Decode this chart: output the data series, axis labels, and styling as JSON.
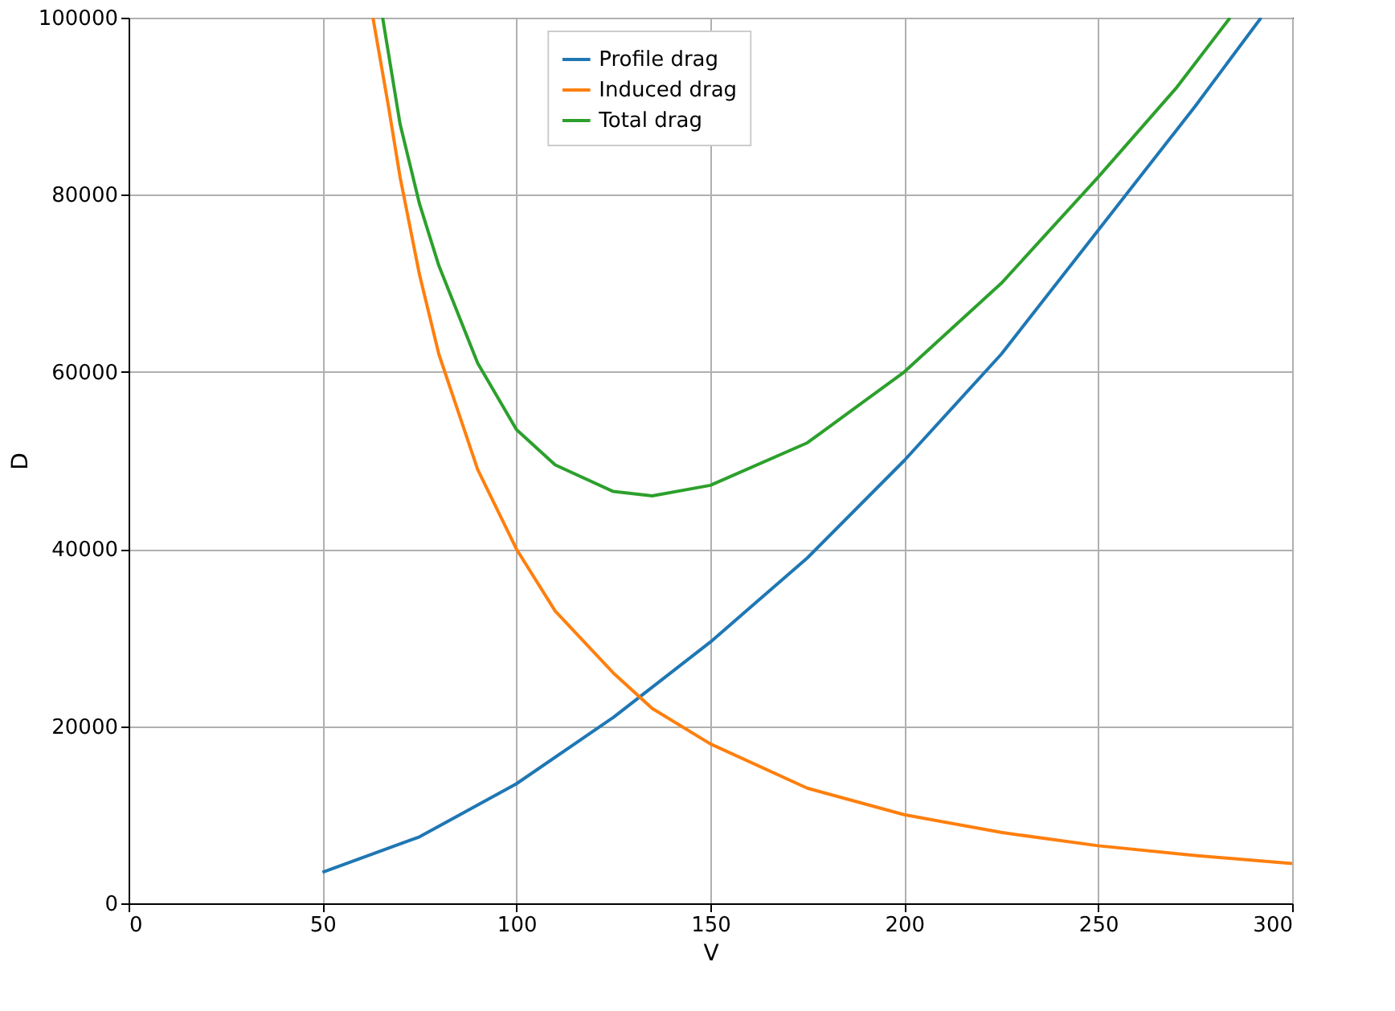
{
  "chart_data": {
    "type": "line",
    "xlabel": "V",
    "ylabel": "D",
    "xlim": [
      0,
      300
    ],
    "ylim": [
      0,
      100000
    ],
    "xticks": [
      0,
      50,
      100,
      150,
      200,
      250,
      300
    ],
    "yticks": [
      0,
      20000,
      40000,
      60000,
      80000,
      100000
    ],
    "grid": true,
    "legend": "top",
    "line_style": "solid",
    "marker": "none",
    "series": [
      {
        "name": "Profile drag",
        "color": "#1f77b4",
        "x": [
          50,
          75,
          100,
          125,
          150,
          175,
          200,
          225,
          250,
          275,
          292
        ],
        "values": [
          3500,
          7500,
          13500,
          21000,
          29500,
          39000,
          50000,
          62000,
          76000,
          90000,
          100000
        ]
      },
      {
        "name": "Induced drag",
        "color": "#ff7f0e",
        "x": [
          63,
          67,
          70,
          75,
          80,
          90,
          100,
          110,
          125,
          135,
          150,
          175,
          200,
          225,
          250,
          275,
          300
        ],
        "values": [
          100000,
          90000,
          82000,
          71000,
          62000,
          49000,
          40000,
          33000,
          26000,
          22000,
          18000,
          13000,
          10000,
          8000,
          6500,
          5400,
          4500
        ]
      },
      {
        "name": "Total drag",
        "color": "#2ca02c",
        "x": [
          65.5,
          70,
          75,
          80,
          90,
          100,
          110,
          125,
          135,
          150,
          175,
          200,
          225,
          250,
          270,
          284
        ],
        "values": [
          100000,
          88000,
          79000,
          72000,
          61000,
          53500,
          49500,
          46500,
          46000,
          47200,
          52000,
          60000,
          70000,
          82000,
          92000,
          100000
        ]
      }
    ]
  }
}
